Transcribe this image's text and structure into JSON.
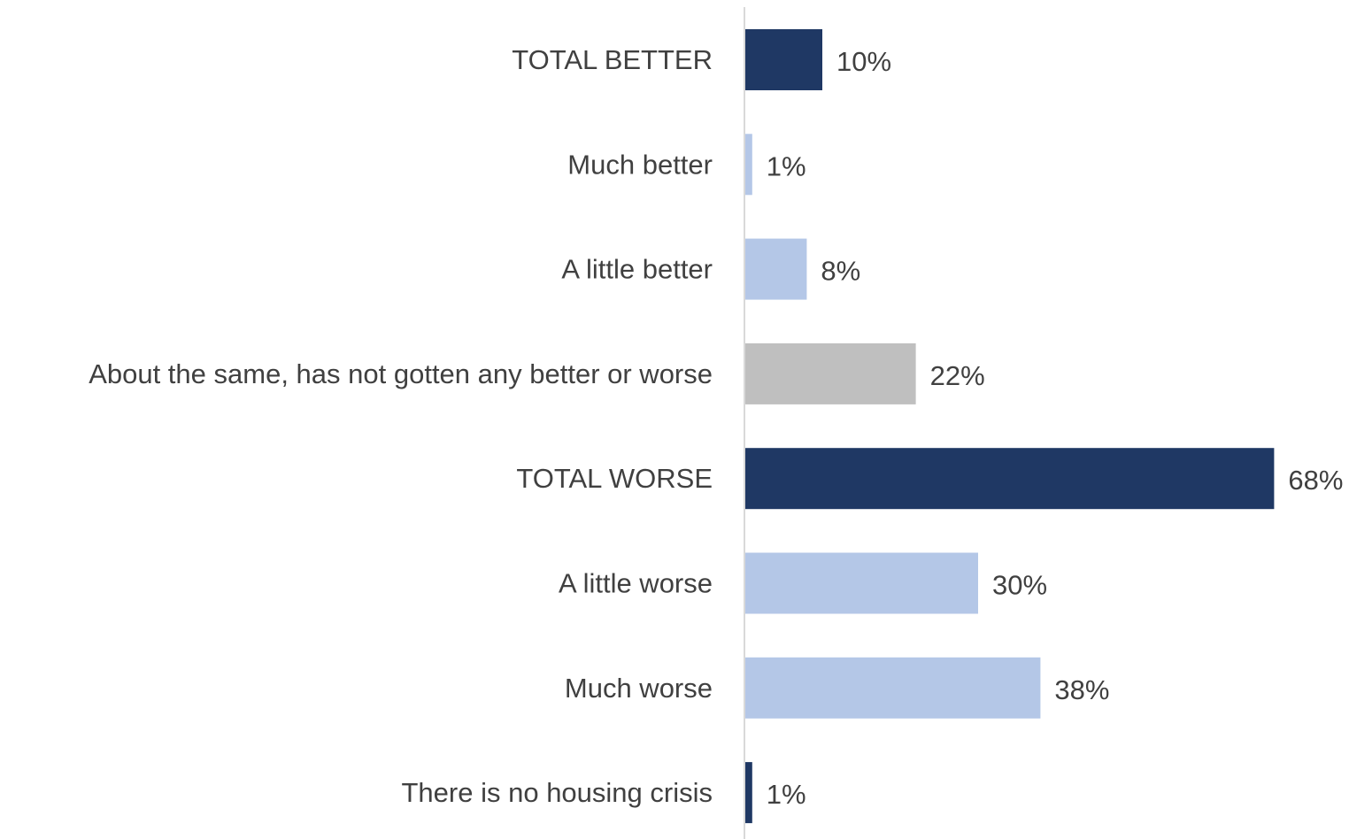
{
  "chart_data": {
    "type": "bar",
    "orientation": "horizontal",
    "title": "",
    "xlabel": "",
    "ylabel": "",
    "xlim": [
      0,
      68
    ],
    "grid": false,
    "legend": "none",
    "categories": [
      "TOTAL BETTER",
      "Much better",
      "A little better",
      "About the same, has not gotten any better or worse",
      "TOTAL WORSE",
      "A little worse",
      "Much worse",
      "There is no housing crisis"
    ],
    "values": [
      10,
      1,
      8,
      22,
      68,
      30,
      38,
      1
    ],
    "value_labels": [
      "10%",
      "1%",
      "8%",
      "22%",
      "68%",
      "30%",
      "38%",
      "1%"
    ],
    "colors": [
      "#1f3864",
      "#b4c7e7",
      "#b4c7e7",
      "#bfbfbf",
      "#1f3864",
      "#b4c7e7",
      "#b4c7e7",
      "#1f3864"
    ],
    "axis_color": "#d9d9d9",
    "label_color": "#404040"
  }
}
